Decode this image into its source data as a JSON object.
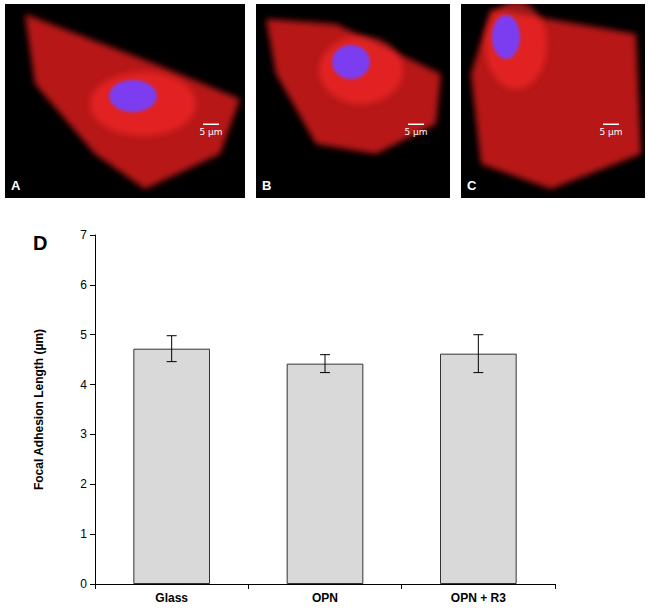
{
  "panels": [
    {
      "label": "A",
      "scale_bar": "5 µm"
    },
    {
      "label": "B",
      "scale_bar": "5 µm"
    },
    {
      "label": "C",
      "scale_bar": "5 µm"
    }
  ],
  "chart_data": {
    "type": "bar",
    "title": "D",
    "y_label": "Focal Adhesion Length (µm)",
    "categories": [
      "Glass",
      "OPN",
      "OPN + R3"
    ],
    "values": [
      4.72,
      4.42,
      4.62
    ],
    "errors": [
      0.26,
      0.18,
      0.38
    ],
    "color": "#d9d9d9",
    "ylim": [
      0,
      7
    ],
    "yticks": [
      0,
      1,
      2,
      3,
      4,
      5,
      6,
      7
    ],
    "grid": false
  }
}
